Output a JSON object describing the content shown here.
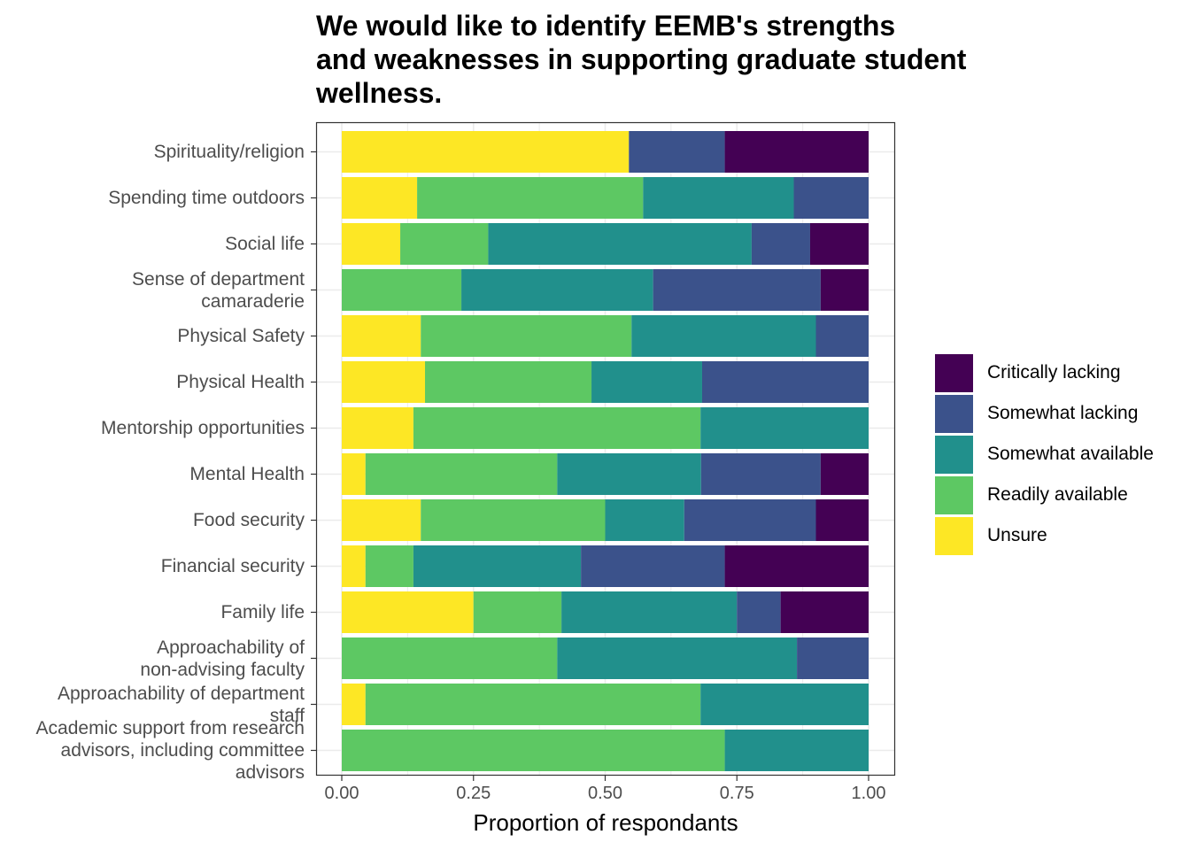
{
  "chart_data": {
    "type": "bar",
    "orientation": "horizontal",
    "stacked": true,
    "title_lines": [
      "We would like to identify EEMB's strengths",
      "and weaknesses in supporting graduate student",
      "wellness."
    ],
    "xlabel": "Proportion of respondants",
    "ylabel": "",
    "xlim": [
      0,
      1
    ],
    "x_ticks": [
      "0.00",
      "0.25",
      "0.50",
      "0.75",
      "1.00"
    ],
    "x_tick_values": [
      0,
      0.25,
      0.5,
      0.75,
      1
    ],
    "grid": true,
    "legend_position": "right",
    "categories": [
      [
        "Spirituality/religion"
      ],
      [
        "Spending time outdoors"
      ],
      [
        "Social life"
      ],
      [
        "Sense of department",
        "camaraderie"
      ],
      [
        "Physical Safety"
      ],
      [
        "Physical Health"
      ],
      [
        "Mentorship opportunities"
      ],
      [
        "Mental Health"
      ],
      [
        "Food security"
      ],
      [
        "Financial security"
      ],
      [
        "Family life"
      ],
      [
        "Approachability of",
        "non-advising faculty"
      ],
      [
        "Approachability of department",
        "staff"
      ],
      [
        "Academic support from research",
        "advisors, including committee",
        "advisors"
      ]
    ],
    "series": [
      {
        "name": "Unsure",
        "color": "#FDE725",
        "values": [
          0.545,
          0.143,
          0.111,
          0.0,
          0.15,
          0.158,
          0.136,
          0.045,
          0.15,
          0.045,
          0.25,
          0.0,
          0.045,
          0.0
        ]
      },
      {
        "name": "Readily available",
        "color": "#5DC863",
        "values": [
          0.0,
          0.429,
          0.167,
          0.227,
          0.4,
          0.316,
          0.545,
          0.364,
          0.35,
          0.091,
          0.167,
          0.409,
          0.636,
          0.727
        ]
      },
      {
        "name": "Somewhat available",
        "color": "#21908C",
        "values": [
          0.0,
          0.286,
          0.5,
          0.364,
          0.35,
          0.21,
          0.319,
          0.273,
          0.15,
          0.318,
          0.333,
          0.455,
          0.319,
          0.273
        ]
      },
      {
        "name": "Somewhat lacking",
        "color": "#3B528B",
        "values": [
          0.182,
          0.142,
          0.111,
          0.318,
          0.1,
          0.316,
          0.0,
          0.227,
          0.25,
          0.273,
          0.083,
          0.136,
          0.0,
          0.0
        ]
      },
      {
        "name": "Critically lacking",
        "color": "#440154",
        "values": [
          0.273,
          0.0,
          0.111,
          0.091,
          0.0,
          0.0,
          0.0,
          0.091,
          0.1,
          0.273,
          0.167,
          0.0,
          0.0,
          0.0
        ]
      }
    ],
    "legend_order": [
      "Critically lacking",
      "Somewhat lacking",
      "Somewhat available",
      "Readily available",
      "Unsure"
    ],
    "colors": {
      "grid": "#EBEBEB",
      "panel_border": "#333333",
      "axis_text": "#4D4D4D"
    }
  }
}
